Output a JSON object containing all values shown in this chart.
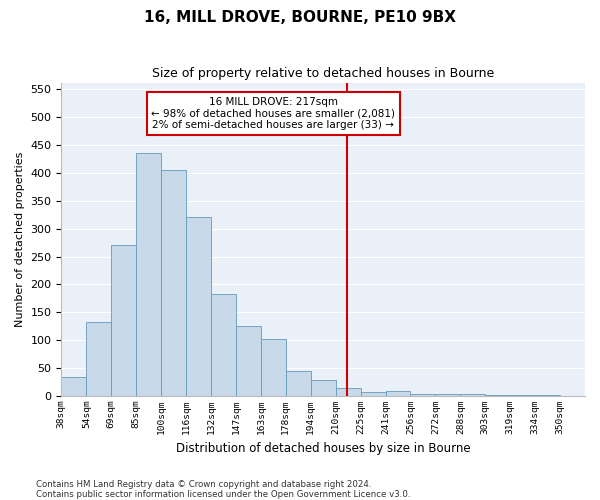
{
  "title1": "16, MILL DROVE, BOURNE, PE10 9BX",
  "title2": "Size of property relative to detached houses in Bourne",
  "xlabel": "Distribution of detached houses by size in Bourne",
  "ylabel": "Number of detached properties",
  "bar_labels": [
    "38sqm",
    "54sqm",
    "69sqm",
    "85sqm",
    "100sqm",
    "116sqm",
    "132sqm",
    "147sqm",
    "163sqm",
    "178sqm",
    "194sqm",
    "210sqm",
    "225sqm",
    "241sqm",
    "256sqm",
    "272sqm",
    "288sqm",
    "303sqm",
    "319sqm",
    "334sqm",
    "350sqm"
  ],
  "bar_heights": [
    35,
    133,
    270,
    435,
    405,
    320,
    183,
    125,
    103,
    46,
    30,
    15,
    8,
    10,
    5,
    4,
    4,
    3,
    3,
    3
  ],
  "bar_color": "#c8d9ea",
  "bar_edgecolor": "#6699bb",
  "vline_color": "#cc0000",
  "annotation_line1": "16 MILL DROVE: 217sqm",
  "annotation_line2": "← 98% of detached houses are smaller (2,081)",
  "annotation_line3": "2% of semi-detached houses are larger (33) →",
  "ylim": [
    0,
    560
  ],
  "yticks": [
    0,
    50,
    100,
    150,
    200,
    250,
    300,
    350,
    400,
    450,
    500,
    550
  ],
  "bg_color": "#eaf0f8",
  "grid_color": "#ffffff",
  "footer1": "Contains HM Land Registry data © Crown copyright and database right 2024.",
  "footer2": "Contains public sector information licensed under the Open Government Licence v3.0."
}
